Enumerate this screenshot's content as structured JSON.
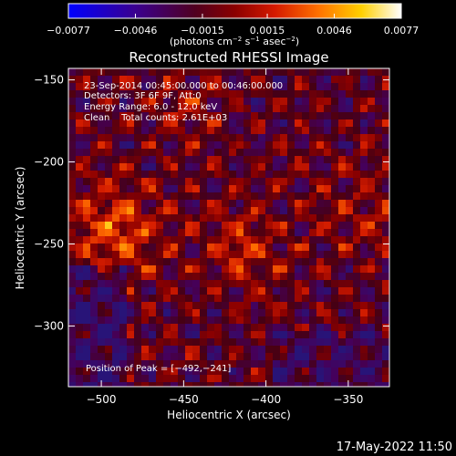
{
  "chart_data": {
    "type": "heatmap",
    "title": "Reconstructed RHESSI Image",
    "xlabel": "Heliocentric X (arcsec)",
    "ylabel": "Heliocentric Y (arcsec)",
    "xlim": [
      -520,
      -325
    ],
    "ylim": [
      -337,
      -143
    ],
    "x_ticks": [
      -500,
      -450,
      -400,
      -350
    ],
    "y_ticks": [
      -150,
      -200,
      -250,
      -300
    ],
    "x_tick_labels": [
      "−500",
      "−450",
      "−400",
      "−350"
    ],
    "y_tick_labels": [
      "−150",
      "−200",
      "−250",
      "−300"
    ],
    "colorbar": {
      "range": [
        -0.0077,
        0.0077
      ],
      "ticks": [
        -0.0077,
        -0.0046,
        -0.0015,
        0.0015,
        0.0046,
        0.0077
      ],
      "tick_labels": [
        "−0.0077",
        "−0.0046",
        "−0.0015",
        "0.0015",
        "0.0046",
        "0.0077"
      ],
      "unit_main": "(photons cm",
      "unit_sup1": "−2",
      "unit_mid1": " s",
      "unit_sup2": "−1",
      "unit_mid2": " asec",
      "unit_sup3": "−2",
      "unit_end": ")"
    },
    "annotations": [
      "23-Sep-2014 00:45:00.000 to 00:46:00.000",
      "Detectors: 3F 6F 9F, Att:0",
      "Energy Range: 6.0 - 12.0 keV",
      "Clean    Total counts: 2.61E+03"
    ],
    "peak_label": "Position of Peak = [−492,−241]",
    "peak": [
      -492,
      -241
    ],
    "grid": false
  },
  "footer": {
    "date": "17-May-2022 11:50"
  }
}
